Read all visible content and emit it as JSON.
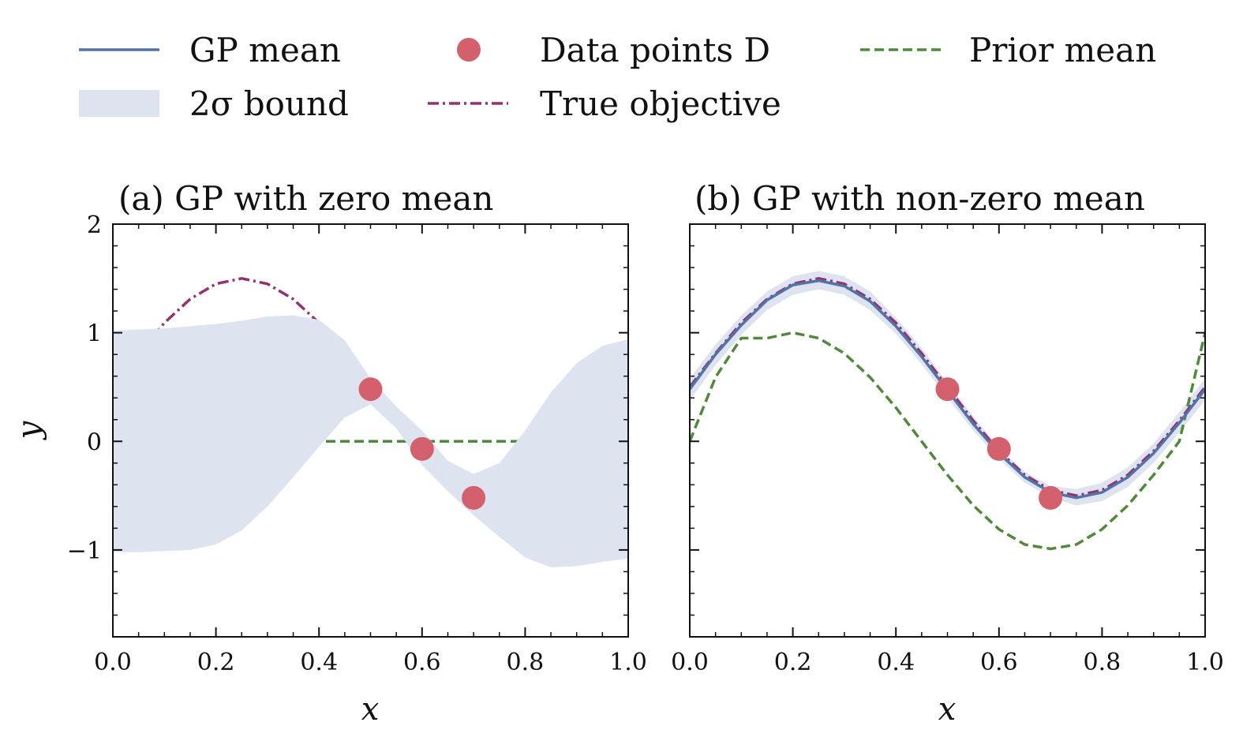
{
  "legend": {
    "entries": [
      {
        "key": "gp_mean",
        "label": "GP mean",
        "style": "line",
        "color": "#5373a8"
      },
      {
        "key": "data",
        "label": "Data points D",
        "style": "marker",
        "color": "#d4606e"
      },
      {
        "key": "prior",
        "label": "Prior mean",
        "style": "dashed",
        "color": "#4f8a3a"
      },
      {
        "key": "band",
        "label": "2σ bound",
        "style": "patch",
        "color": "#dde3ef"
      },
      {
        "key": "true",
        "label": "True objective",
        "style": "dashdot",
        "color": "#93326e"
      }
    ]
  },
  "chart_data": [
    {
      "type": "line",
      "title": "(a) GP with zero mean",
      "xlabel": "x",
      "ylabel": "y",
      "xlim": [
        0,
        1
      ],
      "ylim": [
        -1.8,
        2
      ],
      "xticks": [
        "0.0",
        "0.2",
        "0.4",
        "0.6",
        "0.8",
        "1.0"
      ],
      "yticks": [
        {
          "value": 2,
          "label": "2"
        },
        {
          "value": 1,
          "label": "1"
        },
        {
          "value": 0,
          "label": "0"
        },
        {
          "value": -1,
          "label": "−1"
        }
      ],
      "grid": false,
      "series": [
        {
          "name": "True objective",
          "kind": "line",
          "style": "dashdot",
          "x": [
            0,
            0.05,
            0.1,
            0.15,
            0.2,
            0.25,
            0.3,
            0.35,
            0.4,
            0.45,
            0.5,
            0.55,
            0.6,
            0.65,
            0.7,
            0.75,
            0.8,
            0.85,
            0.9,
            0.95,
            1.0
          ],
          "y": [
            0.5,
            0.81,
            1.09,
            1.31,
            1.45,
            1.5,
            1.45,
            1.31,
            1.09,
            0.81,
            0.5,
            0.19,
            -0.09,
            -0.31,
            -0.45,
            -0.5,
            -0.45,
            -0.31,
            -0.09,
            0.19,
            0.5
          ]
        },
        {
          "name": "GP mean",
          "kind": "line",
          "style": "solid",
          "x": [
            0,
            0.05,
            0.1,
            0.15,
            0.2,
            0.25,
            0.3,
            0.35,
            0.4,
            0.45,
            0.5,
            0.55,
            0.6,
            0.65,
            0.7,
            0.75,
            0.8,
            0.85,
            0.9,
            0.95,
            1.0
          ],
          "y": [
            0.0,
            0.0,
            0.01,
            0.03,
            0.07,
            0.15,
            0.27,
            0.41,
            0.52,
            0.53,
            0.46,
            0.22,
            -0.06,
            -0.32,
            -0.5,
            -0.54,
            -0.46,
            -0.33,
            -0.2,
            -0.1,
            -0.06
          ]
        },
        {
          "name": "Prior mean",
          "kind": "line",
          "style": "dashed",
          "x": [
            0,
            1
          ],
          "y": [
            0,
            0
          ]
        },
        {
          "name": "2σ bound",
          "kind": "band",
          "x": [
            0,
            0.05,
            0.1,
            0.15,
            0.2,
            0.25,
            0.3,
            0.35,
            0.4,
            0.45,
            0.5,
            0.55,
            0.6,
            0.65,
            0.7,
            0.75,
            0.8,
            0.85,
            0.9,
            0.95,
            1.0
          ],
          "upper": [
            1.02,
            1.03,
            1.04,
            1.06,
            1.08,
            1.11,
            1.15,
            1.16,
            1.12,
            0.93,
            0.58,
            0.32,
            0.1,
            -0.18,
            -0.3,
            -0.2,
            0.1,
            0.45,
            0.72,
            0.88,
            0.94
          ],
          "lower": [
            -1.02,
            -1.02,
            -1.01,
            -1.0,
            -0.95,
            -0.82,
            -0.6,
            -0.33,
            -0.05,
            0.22,
            0.34,
            0.12,
            -0.22,
            -0.46,
            -0.68,
            -0.88,
            -1.07,
            -1.16,
            -1.15,
            -1.11,
            -1.08
          ]
        },
        {
          "name": "Data points D",
          "kind": "scatter",
          "x": [
            0.5,
            0.6,
            0.7
          ],
          "y": [
            0.48,
            -0.07,
            -0.52
          ]
        }
      ]
    },
    {
      "type": "line",
      "title": "(b) GP with non-zero mean",
      "xlabel": "x",
      "ylabel": "",
      "xlim": [
        0,
        1
      ],
      "ylim": [
        -1.8,
        2
      ],
      "xticks": [
        "0.0",
        "0.2",
        "0.4",
        "0.6",
        "0.8",
        "1.0"
      ],
      "yticks": [],
      "grid": false,
      "series": [
        {
          "name": "2σ bound",
          "kind": "band",
          "x": [
            0,
            0.05,
            0.1,
            0.15,
            0.2,
            0.25,
            0.3,
            0.35,
            0.4,
            0.45,
            0.5,
            0.55,
            0.6,
            0.65,
            0.7,
            0.75,
            0.8,
            0.85,
            0.9,
            0.95,
            1.0
          ],
          "upper": [
            0.58,
            0.89,
            1.16,
            1.38,
            1.52,
            1.57,
            1.52,
            1.38,
            1.14,
            0.86,
            0.54,
            0.23,
            -0.06,
            -0.28,
            -0.41,
            -0.44,
            -0.38,
            -0.24,
            -0.02,
            0.27,
            0.58
          ],
          "lower": [
            0.38,
            0.7,
            0.98,
            1.21,
            1.35,
            1.4,
            1.35,
            1.21,
            0.99,
            0.71,
            0.4,
            0.1,
            -0.16,
            -0.38,
            -0.52,
            -0.59,
            -0.55,
            -0.42,
            -0.2,
            0.08,
            0.38
          ]
        },
        {
          "name": "Prior mean",
          "kind": "line",
          "style": "dashed",
          "x": [
            0,
            0.05,
            0.1,
            0.15,
            0.2,
            0.25,
            0.3,
            0.35,
            0.4,
            0.45,
            0.5,
            0.55,
            0.6,
            0.65,
            0.7,
            0.75,
            0.8,
            0.85,
            0.9,
            0.95,
            1.0
          ],
          "y": [
            0.0,
            0.59,
            0.95,
            0.95,
            1.0,
            0.95,
            0.81,
            0.59,
            0.31,
            0.0,
            -0.31,
            -0.59,
            -0.81,
            -0.95,
            -0.99,
            -0.95,
            -0.81,
            -0.59,
            -0.31,
            0.0,
            1.0
          ]
        },
        {
          "name": "True objective",
          "kind": "line",
          "style": "dashdot",
          "x": [
            0,
            0.05,
            0.1,
            0.15,
            0.2,
            0.25,
            0.3,
            0.35,
            0.4,
            0.45,
            0.5,
            0.55,
            0.6,
            0.65,
            0.7,
            0.75,
            0.8,
            0.85,
            0.9,
            0.95,
            1.0
          ],
          "y": [
            0.5,
            0.81,
            1.09,
            1.31,
            1.45,
            1.5,
            1.45,
            1.31,
            1.09,
            0.81,
            0.5,
            0.19,
            -0.09,
            -0.31,
            -0.45,
            -0.5,
            -0.45,
            -0.31,
            -0.09,
            0.19,
            0.5
          ]
        },
        {
          "name": "GP mean",
          "kind": "line",
          "style": "solid",
          "x": [
            0,
            0.05,
            0.1,
            0.15,
            0.2,
            0.25,
            0.3,
            0.35,
            0.4,
            0.45,
            0.5,
            0.55,
            0.6,
            0.65,
            0.7,
            0.75,
            0.8,
            0.85,
            0.9,
            0.95,
            1.0
          ],
          "y": [
            0.48,
            0.8,
            1.07,
            1.3,
            1.44,
            1.48,
            1.43,
            1.29,
            1.06,
            0.78,
            0.47,
            0.16,
            -0.11,
            -0.33,
            -0.47,
            -0.52,
            -0.47,
            -0.33,
            -0.11,
            0.17,
            0.48
          ]
        },
        {
          "name": "Data points D",
          "kind": "scatter",
          "x": [
            0.5,
            0.6,
            0.7
          ],
          "y": [
            0.48,
            -0.07,
            -0.52
          ]
        }
      ]
    }
  ]
}
